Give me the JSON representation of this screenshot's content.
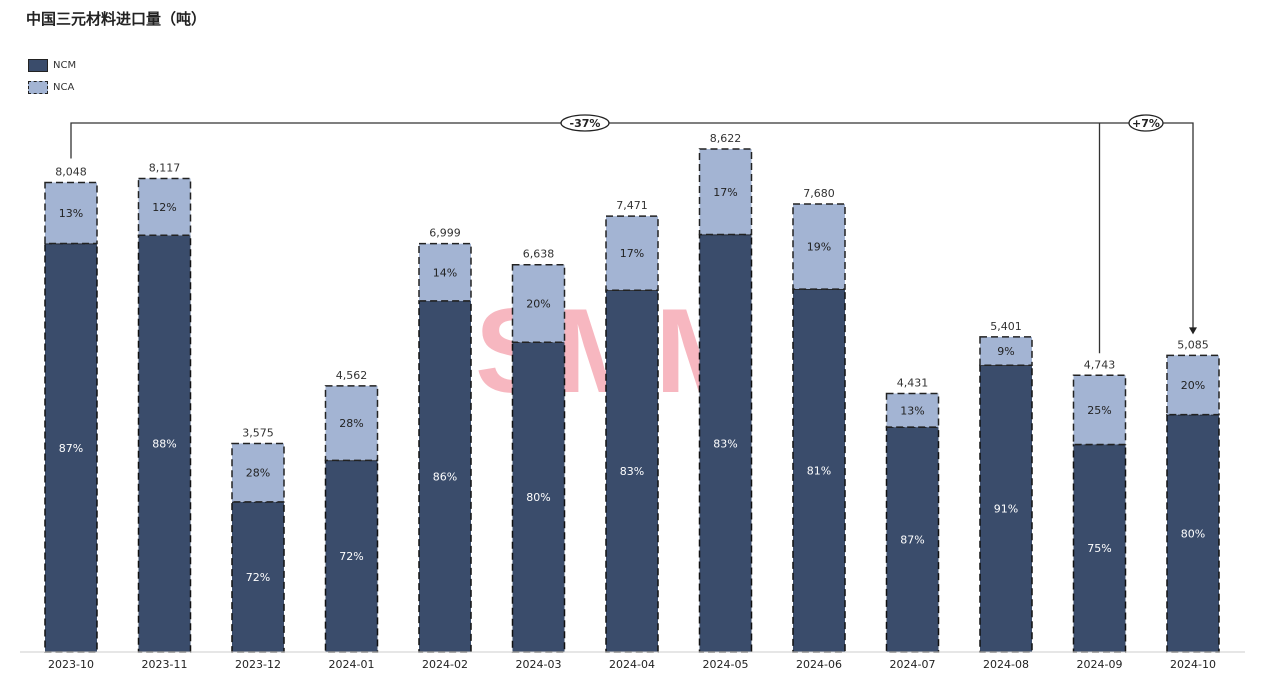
{
  "chart_data": {
    "type": "bar",
    "stacked": true,
    "title": "中国三元材料进口量（吨）",
    "categories": [
      "2023-10",
      "2023-11",
      "2023-12",
      "2024-01",
      "2024-02",
      "2024-03",
      "2024-04",
      "2024-05",
      "2024-06",
      "2024-07",
      "2024-08",
      "2024-09",
      "2024-10"
    ],
    "totals": [
      8048,
      8117,
      3575,
      4562,
      6999,
      6638,
      7471,
      8622,
      7680,
      4431,
      5401,
      4743,
      5085
    ],
    "total_labels": [
      "8,048",
      "8,117",
      "3,575",
      "4,562",
      "6,999",
      "6,638",
      "7,471",
      "8,622",
      "7,680",
      "4,431",
      "5,401",
      "4,743",
      "5,085"
    ],
    "series": [
      {
        "name": "NCM",
        "color": "#3a4c6b",
        "share_pct": [
          87,
          88,
          72,
          72,
          86,
          80,
          83,
          83,
          81,
          87,
          91,
          75,
          80
        ]
      },
      {
        "name": "NCA",
        "color": "#a3b4d3",
        "share_pct": [
          13,
          12,
          28,
          28,
          14,
          20,
          17,
          17,
          19,
          13,
          9,
          25,
          20
        ]
      }
    ],
    "annotations": [
      {
        "label": "-37%",
        "from": "2023-10",
        "to": "2024-10"
      },
      {
        "label": "+7%",
        "from": "2024-09",
        "to": "2024-10"
      }
    ],
    "ylim": [
      0,
      9000
    ],
    "grid": false,
    "legend_position": "top-left",
    "watermark": "SMM"
  }
}
